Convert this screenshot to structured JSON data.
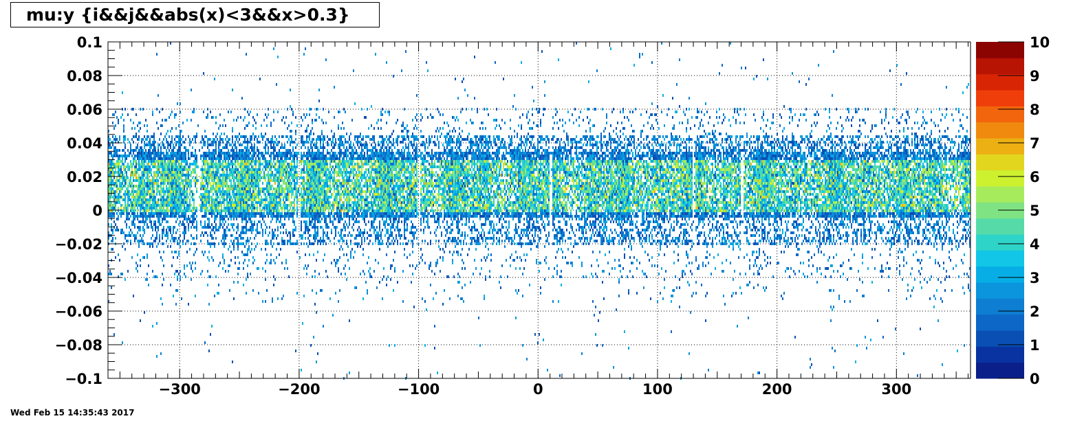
{
  "chart_data": {
    "type": "heatmap",
    "title": "mu:y {i&&j&&abs(x)<3&&x>0.3}",
    "xlabel": "",
    "ylabel": "",
    "xlim": [
      -360,
      362
    ],
    "ylim": [
      -0.1,
      0.1
    ],
    "x_ticks": [
      -300,
      -200,
      -100,
      0,
      100,
      200,
      300
    ],
    "x_tick_labels": [
      "−300",
      "−200",
      "−100",
      "0",
      "100",
      "200",
      "300"
    ],
    "y_ticks": [
      0.1,
      0.08,
      0.06,
      0.04,
      0.02,
      0,
      -0.02,
      -0.04,
      -0.06,
      -0.08,
      -0.1
    ],
    "y_tick_labels": [
      "0.1",
      "0.08",
      "0.06",
      "0.04",
      "0.02",
      "0",
      "−0.02",
      "−0.04",
      "−0.06",
      "−0.08",
      "−0.1"
    ],
    "grid": true,
    "colorbar": {
      "min": 0,
      "max": 10,
      "tick_labels": [
        "0",
        "1",
        "2",
        "3",
        "4",
        "5",
        "6",
        "7",
        "8",
        "9",
        "10"
      ],
      "colors": [
        "#0b1f8a",
        "#0833a0",
        "#0a4fb4",
        "#0c67c6",
        "#0e7ed2",
        "#0a95dc",
        "#07aee6",
        "#11c6e6",
        "#2fd4c8",
        "#56dba8",
        "#7fe383",
        "#a6eb5c",
        "#cdf12f",
        "#e2d61e",
        "#ecb013",
        "#f08a0e",
        "#f2650c",
        "#f03e0a",
        "#d82605",
        "#b81404",
        "#8c0402"
      ]
    },
    "density_profile": {
      "core_band": [
        -0.005,
        0.035
      ],
      "typical_counts": "1-7"
    }
  },
  "timestamp": "Wed Feb 15 14:35:43 2017"
}
